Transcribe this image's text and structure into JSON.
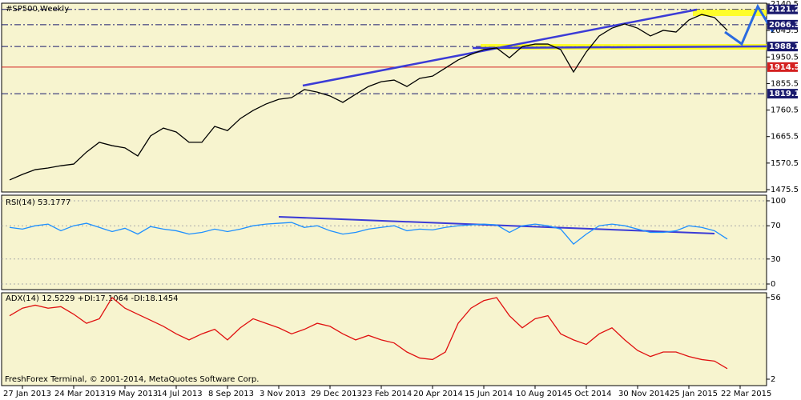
{
  "chart_data": [
    {
      "type": "line",
      "title": "#SP500,Weekly",
      "categories": [
        null,
        "27 Jan 2013",
        null,
        null,
        null,
        "24 Mar 2013",
        null,
        null,
        null,
        "19 May 2013",
        null,
        null,
        null,
        "14 Jul 2013",
        null,
        null,
        null,
        "8 Sep 2013",
        null,
        null,
        null,
        "3 Nov 2013",
        null,
        null,
        null,
        "29 Dec 2013",
        null,
        null,
        null,
        "23 Feb 2014",
        null,
        null,
        null,
        "20 Apr 2014",
        null,
        null,
        null,
        "15 Jun 2014",
        null,
        null,
        null,
        "10 Aug 2014",
        null,
        null,
        null,
        "5 Oct 2014",
        null,
        null,
        null,
        "30 Nov 2014",
        null,
        null,
        null,
        "25 Jan 2015",
        null,
        null,
        null,
        "22 Mar 2015"
      ],
      "series": [
        {
          "color": "#000000",
          "values": [
            1510,
            1530,
            1547,
            1553,
            1561,
            1567,
            1610,
            1645,
            1633,
            1625,
            1596,
            1668,
            1696,
            1682,
            1645,
            1645,
            1702,
            1687,
            1730,
            1759,
            1782,
            1799,
            1805,
            1834,
            1825,
            1811,
            1788,
            1817,
            1845,
            1862,
            1868,
            1845,
            1874,
            1882,
            1911,
            1940,
            1960,
            1977,
            1983,
            1948,
            1988,
            1997,
            1997,
            1977,
            1897,
            1969,
            2026,
            2054,
            2069,
            2054,
            2026,
            2046,
            2040,
            2083,
            2103,
            2092,
            2046,
            null
          ]
        }
      ],
      "ylim": [
        1475.5,
        2140.5
      ],
      "yticks": [
        1475.5,
        1570.5,
        1665.5,
        1760.5,
        1855.5,
        1950.5,
        2045.5,
        2140.5
      ],
      "levels": [
        {
          "value": 2121.2,
          "color": "#1a1a6e"
        },
        {
          "value": 2066.3,
          "color": "#1a1a6e"
        },
        {
          "value": 1988.1,
          "color": "#1a1a6e"
        },
        {
          "value": 1914.5,
          "color": "#d42020"
        },
        {
          "value": 1819.1,
          "color": "#1a1a6e"
        }
      ]
    },
    {
      "type": "line",
      "title": "RSI(14) 53.1777",
      "series": [
        {
          "color": "#1e90ff",
          "values": [
            68,
            66,
            70,
            72,
            64,
            70,
            73,
            68,
            63,
            67,
            60,
            69,
            66,
            64,
            60,
            62,
            66,
            63,
            66,
            70,
            72,
            73,
            74,
            68,
            70,
            64,
            60,
            62,
            66,
            68,
            70,
            64,
            66,
            65,
            68,
            70,
            71,
            72,
            71,
            62,
            70,
            72,
            70,
            66,
            48,
            60,
            70,
            72,
            70,
            66,
            62,
            62,
            64,
            70,
            68,
            64,
            54,
            null
          ]
        }
      ],
      "ylim": [
        0,
        100
      ],
      "yticks": [
        0,
        30,
        70,
        100
      ]
    },
    {
      "type": "line",
      "title": "ADX(14) 12.5229 +DI:17.1064 -DI:18.1454",
      "series": [
        {
          "color": "#e01010",
          "values": [
            44,
            49,
            51,
            49,
            50,
            45,
            39,
            42,
            56,
            49,
            45,
            41,
            37,
            32,
            28,
            32,
            35,
            28,
            36,
            42,
            39,
            36,
            32,
            35,
            39,
            37,
            32,
            28,
            31,
            28,
            26,
            20,
            16,
            15,
            20,
            39,
            49,
            54,
            56,
            44,
            36,
            42,
            44,
            32,
            28,
            25,
            32,
            36,
            28,
            21,
            17,
            20,
            20,
            17,
            15,
            14,
            9,
            null
          ]
        }
      ],
      "ylim": [
        2,
        56
      ],
      "yticks": [
        2,
        56
      ]
    }
  ],
  "footer": "FreshForex Terminal, © 2001-2014, MetaQuotes Software Corp."
}
